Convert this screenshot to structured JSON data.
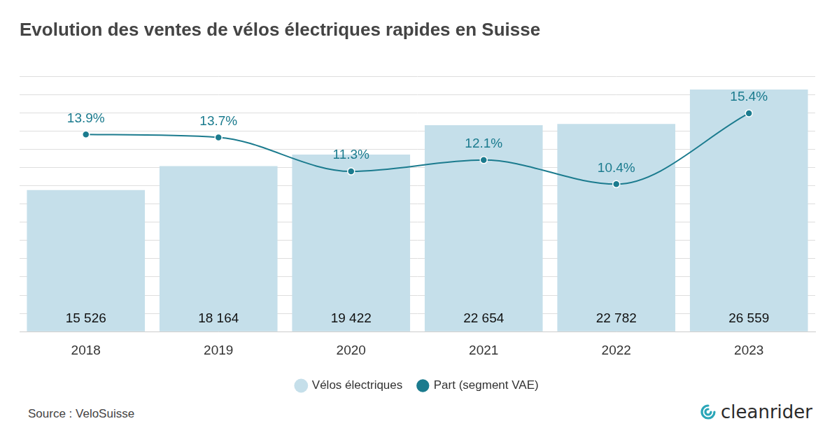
{
  "chart_data": {
    "type": "bar",
    "title": "Evolution des ventes de vélos électriques rapides en Suisse",
    "categories": [
      "2018",
      "2019",
      "2020",
      "2021",
      "2022",
      "2023"
    ],
    "series": [
      {
        "name": "Vélos électriques",
        "type": "bar",
        "color": "#c5dfea",
        "values": [
          15526,
          18164,
          19422,
          22654,
          22782,
          26559
        ],
        "value_labels": [
          "15 526",
          "18 164",
          "19 422",
          "22 654",
          "22 782",
          "26 559"
        ]
      },
      {
        "name": "Part (segment VAE)",
        "type": "line",
        "axis": "y2",
        "color": "#1b7b8e",
        "marker": "circle",
        "values": [
          13.9,
          13.7,
          11.3,
          12.1,
          10.4,
          15.4
        ],
        "value_labels": [
          "13.9%",
          "13.7%",
          "11.3%",
          "12.1%",
          "10.4%",
          "15.4%"
        ]
      }
    ],
    "ylim": [
      0,
      28000
    ],
    "yticks": [
      0,
      2000,
      4000,
      6000,
      8000,
      10000,
      12000,
      14000,
      16000,
      18000,
      20000,
      22000,
      24000,
      26000,
      28000
    ],
    "y2lim": [
      0,
      18
    ],
    "y2ticks": [
      0,
      6,
      12,
      18
    ],
    "grid": true,
    "legend": "bottom",
    "data_labels": true,
    "tick_labels": "x",
    "source": "Source : VeloSuisse",
    "brand": "cleanrider"
  }
}
